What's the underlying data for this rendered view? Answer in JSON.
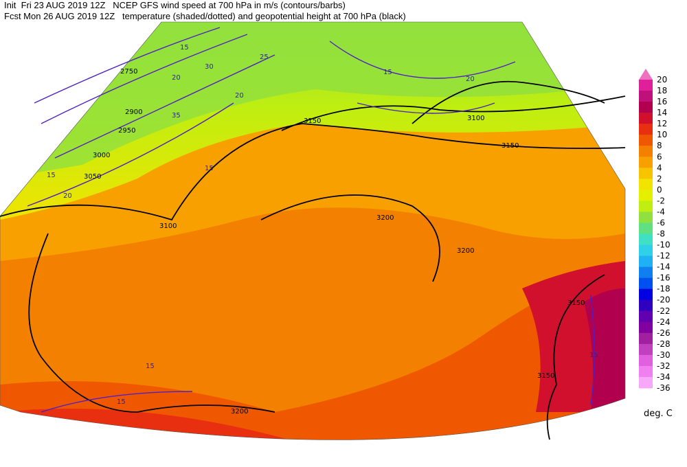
{
  "header": {
    "init": "Init  Fri 23 AUG 2019 12Z",
    "title1": "NCEP GFS wind speed at 700 hPa in m/s (contours/barbs)",
    "fcst": "Fcst Mon 26 AUG 2019 12Z",
    "title2": "temperature (shaded/dotted) and geopotential height at 700 hPa (black)"
  },
  "colorbar": {
    "ticks": [
      20,
      18,
      16,
      14,
      12,
      10,
      8,
      6,
      4,
      2,
      0,
      -2,
      -4,
      -6,
      -8,
      -10,
      -12,
      -14,
      -16,
      -18,
      -20,
      -22,
      -24,
      -26,
      -28,
      -30,
      -32,
      -34,
      -36
    ],
    "colors": [
      "#e0209a",
      "#c0107a",
      "#b0004e",
      "#d0102c",
      "#e83010",
      "#f05800",
      "#f48000",
      "#f8a000",
      "#f8c400",
      "#f0e400",
      "#e4f000",
      "#c0ee10",
      "#90e040",
      "#60e080",
      "#40e0c4",
      "#30d0e8",
      "#20b0f4",
      "#1080f0",
      "#0050f0",
      "#0000e0",
      "#3000c0",
      "#6000b0",
      "#8000a0",
      "#a020a0",
      "#c040c0",
      "#e060e0",
      "#f080f0",
      "#f8a8f8"
    ],
    "top_color": "#f070c0",
    "unit": "deg. C"
  },
  "contours": {
    "labels": [
      "3150",
      "3150",
      "3200",
      "3200",
      "3100",
      "3000",
      "2950",
      "2900",
      "2750",
      "3150",
      "3150",
      "3200",
      "3100",
      "3050"
    ],
    "wind": [
      "15",
      "20",
      "25",
      "30",
      "35",
      "20",
      "15",
      "20",
      "15",
      "20",
      "15",
      "15",
      "15",
      "15"
    ]
  }
}
